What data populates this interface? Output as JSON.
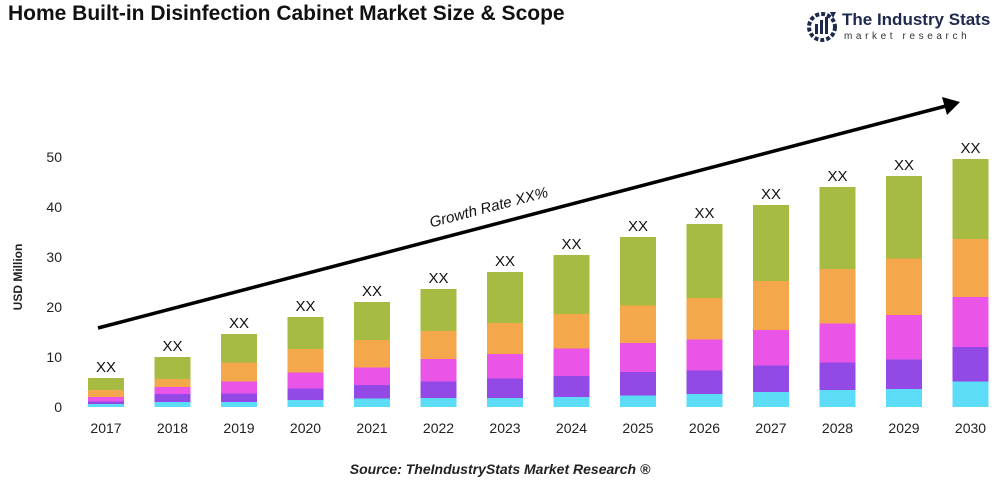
{
  "header": {
    "title": "Home Built-in Disinfection Cabinet Market Size & Scope"
  },
  "logo": {
    "name": "The Industry Stats",
    "tagline": "market research"
  },
  "source": "Source: TheIndustryStats Market Research ®",
  "chart_data": {
    "type": "bar",
    "stacked": true,
    "title": "Home Built-in Disinfection Cabinet Market Size & Scope",
    "xlabel": "",
    "ylabel": "USD Million",
    "ylim": [
      0,
      50
    ],
    "yticks": [
      0,
      10,
      20,
      30,
      40,
      50
    ],
    "grid": false,
    "categories": [
      "2017",
      "2018",
      "2019",
      "2020",
      "2021",
      "2022",
      "2023",
      "2024",
      "2025",
      "2026",
      "2027",
      "2028",
      "2029",
      "2030"
    ],
    "series": [
      {
        "color": "#5ddcf7",
        "values": [
          0.6,
          1.0,
          1.0,
          1.4,
          1.7,
          1.8,
          1.8,
          2.0,
          2.3,
          2.6,
          3.0,
          3.4,
          3.6,
          5.1
        ]
      },
      {
        "color": "#9349e6",
        "values": [
          0.5,
          1.6,
          1.7,
          2.3,
          2.7,
          3.3,
          3.9,
          4.2,
          4.7,
          4.7,
          5.3,
          5.5,
          5.9,
          6.9
        ]
      },
      {
        "color": "#ea55e8",
        "values": [
          0.9,
          1.4,
          2.4,
          3.2,
          3.5,
          4.5,
          4.9,
          5.5,
          5.8,
          6.2,
          7.1,
          7.8,
          8.9,
          10.0
        ]
      },
      {
        "color": "#f4a74b",
        "values": [
          1.4,
          1.6,
          3.8,
          4.7,
          5.5,
          5.6,
          6.2,
          6.9,
          7.5,
          8.3,
          9.8,
          10.9,
          11.3,
          11.6
        ]
      },
      {
        "color": "#a6bb42",
        "values": [
          2.4,
          4.4,
          5.7,
          6.4,
          7.6,
          8.4,
          10.2,
          11.8,
          13.7,
          14.8,
          15.2,
          16.4,
          16.5,
          16.0
        ]
      }
    ],
    "data_labels": [
      "XX",
      "XX",
      "XX",
      "XX",
      "XX",
      "XX",
      "XX",
      "XX",
      "XX",
      "XX",
      "XX",
      "XX",
      "XX",
      "XX"
    ],
    "annotation": "Growth Rate XX%"
  }
}
